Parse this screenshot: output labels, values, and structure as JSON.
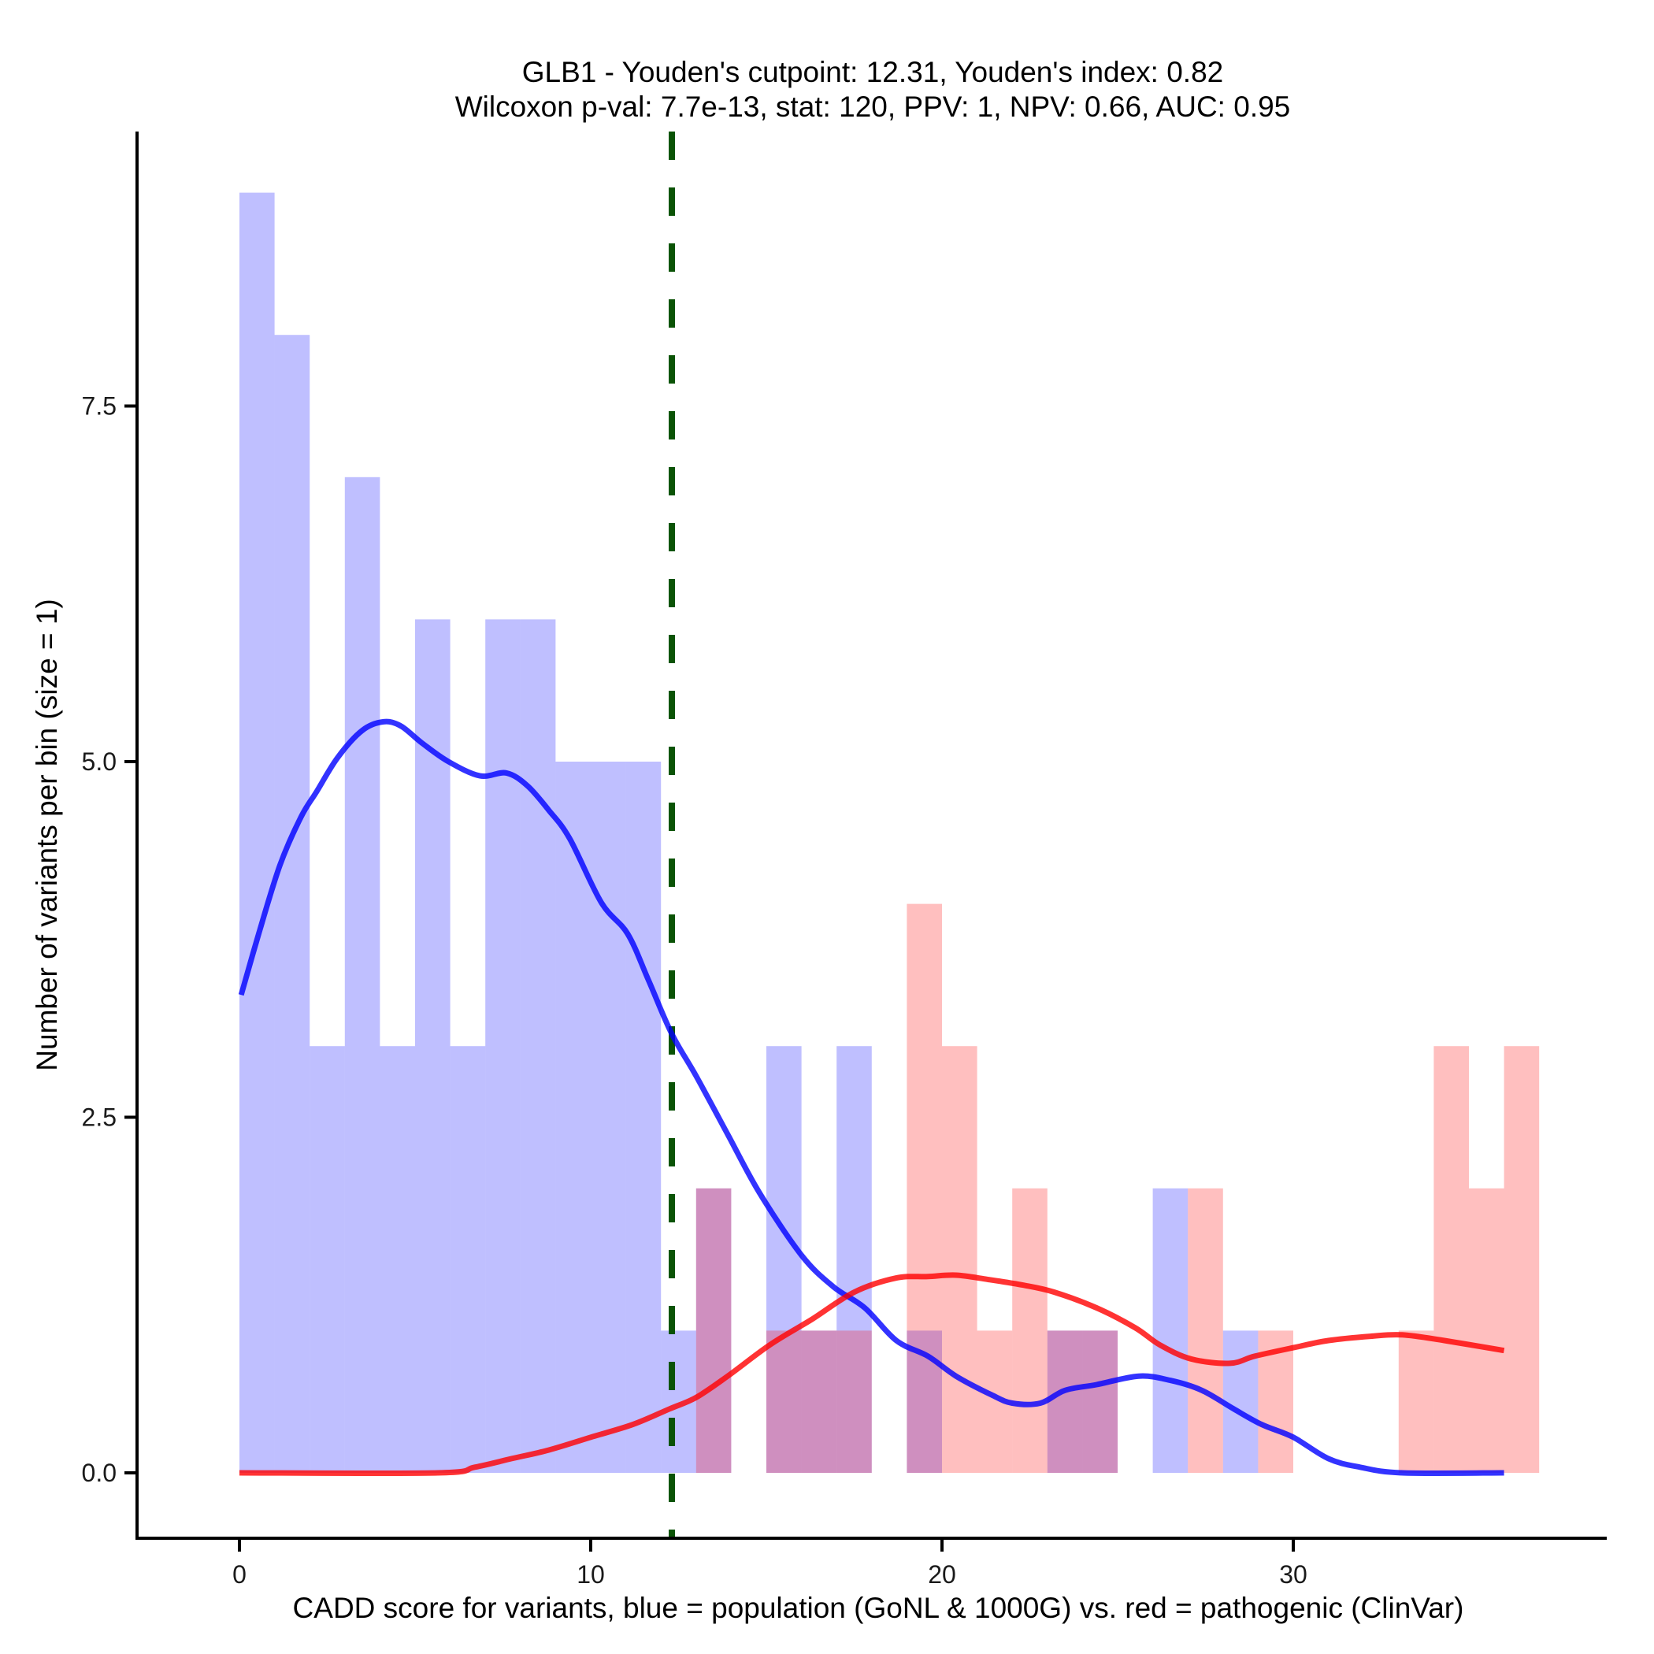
{
  "chart_data": {
    "type": "histogram",
    "title": "GLB1 - Youden's cutpoint: 12.31, Youden's index: 0.82",
    "subtitle": "Wilcoxon p-val: 7.7e-13, stat: 120, PPV: 1, NPV: 0.66, AUC: 0.95",
    "xlabel": "CADD score for variants, blue = population (GoNL & 1000G) vs. red = pathogenic (ClinVar)",
    "ylabel": "Number of variants per bin (size = 1)",
    "xlim": [
      -2.9,
      38.7
    ],
    "ylim": [
      -0.45,
      9.4
    ],
    "x_ticks": [
      0,
      10,
      20,
      30
    ],
    "x_tick_labels": [
      "0",
      "10",
      "20",
      "30"
    ],
    "y_ticks": [
      0,
      2.5,
      5,
      7.5
    ],
    "y_tick_labels": [
      "0.0",
      "2.5",
      "5.0",
      "7.5"
    ],
    "grid": false,
    "bin_width": 1,
    "cutpoint": 12.31,
    "colors": {
      "population_fill": "#0000ff",
      "pathogenic_fill": "#ff0000",
      "population_line": "#0000ff",
      "pathogenic_line": "#ff0000",
      "cutpoint_line": "#0b5306"
    },
    "series": [
      {
        "name": "population (GoNL & 1000G)",
        "color": "blue",
        "bins": [
          {
            "x0": 0,
            "x1": 1,
            "count": 9
          },
          {
            "x0": 1,
            "x1": 2,
            "count": 8
          },
          {
            "x0": 2,
            "x1": 3,
            "count": 3
          },
          {
            "x0": 3,
            "x1": 4,
            "count": 7
          },
          {
            "x0": 4,
            "x1": 5,
            "count": 3
          },
          {
            "x0": 5,
            "x1": 6,
            "count": 6
          },
          {
            "x0": 6,
            "x1": 7,
            "count": 3
          },
          {
            "x0": 7,
            "x1": 8,
            "count": 6
          },
          {
            "x0": 8,
            "x1": 9,
            "count": 6
          },
          {
            "x0": 9,
            "x1": 10,
            "count": 5
          },
          {
            "x0": 10,
            "x1": 11,
            "count": 5
          },
          {
            "x0": 11,
            "x1": 12,
            "count": 5
          },
          {
            "x0": 12,
            "x1": 13,
            "count": 1
          },
          {
            "x0": 13,
            "x1": 14,
            "count": 2
          },
          {
            "x0": 15,
            "x1": 16,
            "count": 3
          },
          {
            "x0": 16,
            "x1": 17,
            "count": 1
          },
          {
            "x0": 17,
            "x1": 18,
            "count": 3
          },
          {
            "x0": 19,
            "x1": 20,
            "count": 1
          },
          {
            "x0": 23,
            "x1": 24,
            "count": 1
          },
          {
            "x0": 24,
            "x1": 25,
            "count": 1
          },
          {
            "x0": 26,
            "x1": 27,
            "count": 2
          },
          {
            "x0": 28,
            "x1": 29,
            "count": 1
          }
        ],
        "density_curve": [
          [
            0.05,
            3.36
          ],
          [
            0.55,
            3.79
          ],
          [
            1.15,
            4.27
          ],
          [
            1.75,
            4.61
          ],
          [
            2.2,
            4.79
          ],
          [
            2.8,
            5.03
          ],
          [
            3.5,
            5.22
          ],
          [
            4.1,
            5.28
          ],
          [
            4.6,
            5.25
          ],
          [
            5.2,
            5.13
          ],
          [
            5.95,
            5.0
          ],
          [
            6.85,
            4.9
          ],
          [
            7.6,
            4.92
          ],
          [
            8.2,
            4.83
          ],
          [
            8.8,
            4.66
          ],
          [
            9.4,
            4.46
          ],
          [
            10.3,
            4.01
          ],
          [
            11.05,
            3.79
          ],
          [
            11.65,
            3.46
          ],
          [
            12.3,
            3.09
          ],
          [
            13.0,
            2.79
          ],
          [
            13.9,
            2.38
          ],
          [
            14.8,
            1.97
          ],
          [
            16.0,
            1.53
          ],
          [
            16.9,
            1.31
          ],
          [
            17.8,
            1.16
          ],
          [
            18.7,
            0.93
          ],
          [
            19.6,
            0.82
          ],
          [
            20.4,
            0.68
          ],
          [
            21.4,
            0.55
          ],
          [
            22.0,
            0.49
          ],
          [
            22.8,
            0.49
          ],
          [
            23.5,
            0.58
          ],
          [
            24.4,
            0.62
          ],
          [
            25.6,
            0.68
          ],
          [
            26.5,
            0.65
          ],
          [
            27.4,
            0.58
          ],
          [
            28.3,
            0.45
          ],
          [
            29.1,
            0.34
          ],
          [
            30.0,
            0.25
          ],
          [
            31.0,
            0.1
          ],
          [
            31.9,
            0.04
          ],
          [
            33.1,
            0.0
          ],
          [
            36.0,
            0.0
          ]
        ]
      },
      {
        "name": "pathogenic (ClinVar)",
        "color": "red",
        "bins": [
          {
            "x0": 13,
            "x1": 14,
            "count": 2
          },
          {
            "x0": 15,
            "x1": 16,
            "count": 1
          },
          {
            "x0": 16,
            "x1": 17,
            "count": 1
          },
          {
            "x0": 17,
            "x1": 18,
            "count": 1
          },
          {
            "x0": 19,
            "x1": 20,
            "count": 4
          },
          {
            "x0": 20,
            "x1": 21,
            "count": 3
          },
          {
            "x0": 21,
            "x1": 22,
            "count": 1
          },
          {
            "x0": 22,
            "x1": 23,
            "count": 2
          },
          {
            "x0": 23,
            "x1": 24,
            "count": 1
          },
          {
            "x0": 24,
            "x1": 25,
            "count": 1
          },
          {
            "x0": 27,
            "x1": 28,
            "count": 2
          },
          {
            "x0": 29,
            "x1": 30,
            "count": 1
          },
          {
            "x0": 33,
            "x1": 34,
            "count": 1
          },
          {
            "x0": 34,
            "x1": 35,
            "count": 3
          },
          {
            "x0": 35,
            "x1": 36,
            "count": 2
          },
          {
            "x0": 36,
            "x1": 37,
            "count": 3
          }
        ],
        "density_curve": [
          [
            0.0,
            0.0
          ],
          [
            5.65,
            0.0
          ],
          [
            6.7,
            0.04
          ],
          [
            7.75,
            0.1
          ],
          [
            8.8,
            0.16
          ],
          [
            10.0,
            0.25
          ],
          [
            11.2,
            0.34
          ],
          [
            12.25,
            0.45
          ],
          [
            13.0,
            0.53
          ],
          [
            13.9,
            0.68
          ],
          [
            15.1,
            0.9
          ],
          [
            16.3,
            1.08
          ],
          [
            17.5,
            1.27
          ],
          [
            18.7,
            1.37
          ],
          [
            19.6,
            1.38
          ],
          [
            20.4,
            1.39
          ],
          [
            21.3,
            1.36
          ],
          [
            22.3,
            1.32
          ],
          [
            23.2,
            1.27
          ],
          [
            24.4,
            1.16
          ],
          [
            25.5,
            1.02
          ],
          [
            26.2,
            0.9
          ],
          [
            27.1,
            0.8
          ],
          [
            28.2,
            0.77
          ],
          [
            28.9,
            0.82
          ],
          [
            30.0,
            0.88
          ],
          [
            31.0,
            0.93
          ],
          [
            32.2,
            0.96
          ],
          [
            33.1,
            0.97
          ],
          [
            34.3,
            0.93
          ],
          [
            36.0,
            0.86
          ]
        ]
      }
    ],
    "legend": "none"
  }
}
